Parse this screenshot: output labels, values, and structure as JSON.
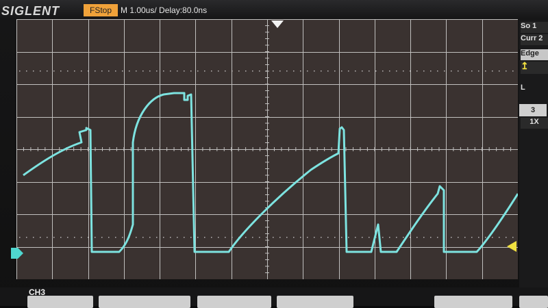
{
  "header": {
    "brand": "SIGLENT",
    "run_state": "FStop",
    "timebase": "M 1.00us/ Delay:80.0ns"
  },
  "right_panel": {
    "line1": "So 1",
    "line2": "Curr 2",
    "trigger_type": "Edge",
    "edge_symbol": "↥",
    "level_marker": "L",
    "channel_number": "3",
    "probe": "1X"
  },
  "footer": {
    "channel": "CH3"
  },
  "colors": {
    "trace": "#7de3e0",
    "grid": "#d9d9d9",
    "status_box": "#f0a23a",
    "trigger_marker": "#f0e040",
    "ground_marker": "#4fd6cf"
  },
  "icons": {
    "trigger_position": "down-triangle-icon",
    "channel_ground": "ground-marker-icon",
    "trigger_level": "left-triangle-icon"
  }
}
